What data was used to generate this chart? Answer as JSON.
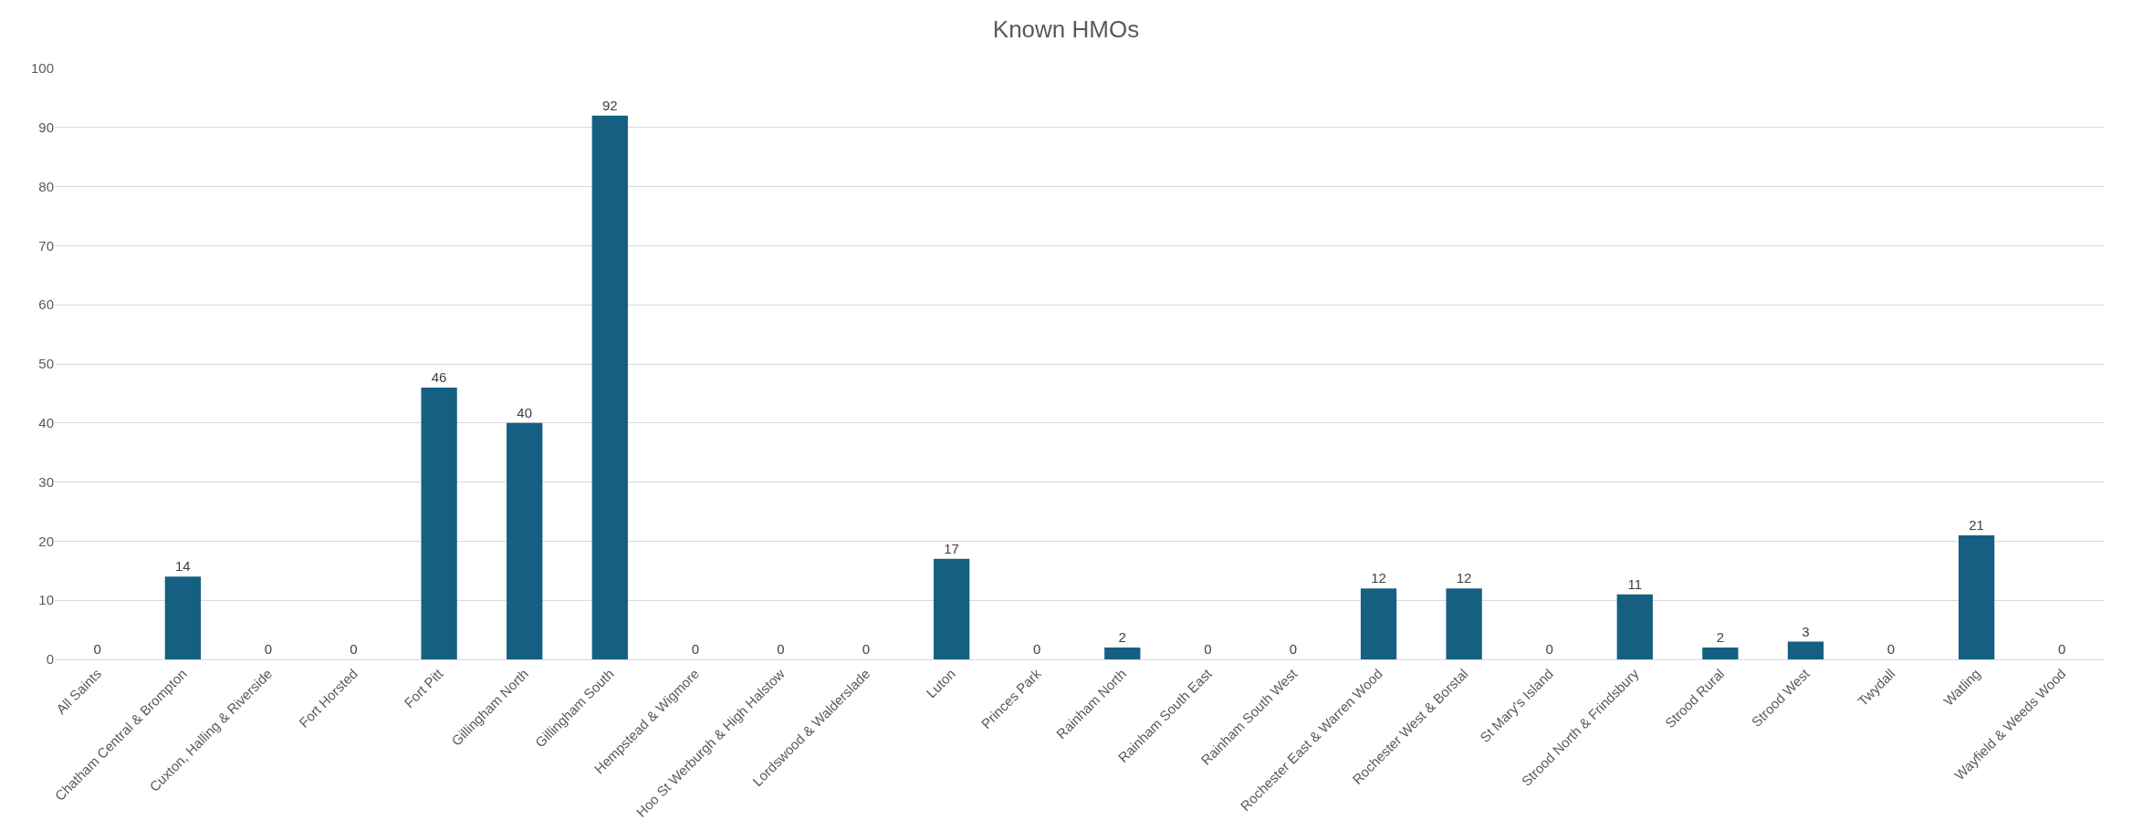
{
  "chart_data": {
    "type": "bar",
    "title": "Known HMOs",
    "categories": [
      "All Saints",
      "Chatham Central & Brompton",
      "Cuxton, Halling & Riverside",
      "Fort Horsted",
      "Fort Pitt",
      "Gillingham North",
      "Gillingham South",
      "Hempstead & Wigmore",
      "Hoo St Werburgh & High Halstow",
      "Lordswood & Walderslade",
      "Luton",
      "Princes Park",
      "Rainham North",
      "Rainham South East",
      "Rainham South West",
      "Rochester East & Warren Wood",
      "Rochester West & Borstal",
      "St Mary's Island",
      "Strood North & Frindsbury",
      "Strood Rural",
      "Strood West",
      "Twydall",
      "Watling",
      "Wayfield & Weeds Wood"
    ],
    "values": [
      0,
      14,
      0,
      0,
      46,
      40,
      92,
      0,
      0,
      0,
      17,
      0,
      2,
      0,
      0,
      12,
      12,
      0,
      11,
      2,
      3,
      0,
      21,
      0
    ],
    "color": "#156082",
    "ylim": [
      0,
      100
    ],
    "yticks": [
      0,
      10,
      20,
      30,
      40,
      50,
      60,
      70,
      80,
      90,
      100
    ],
    "grid": "y",
    "data_labels": true
  }
}
